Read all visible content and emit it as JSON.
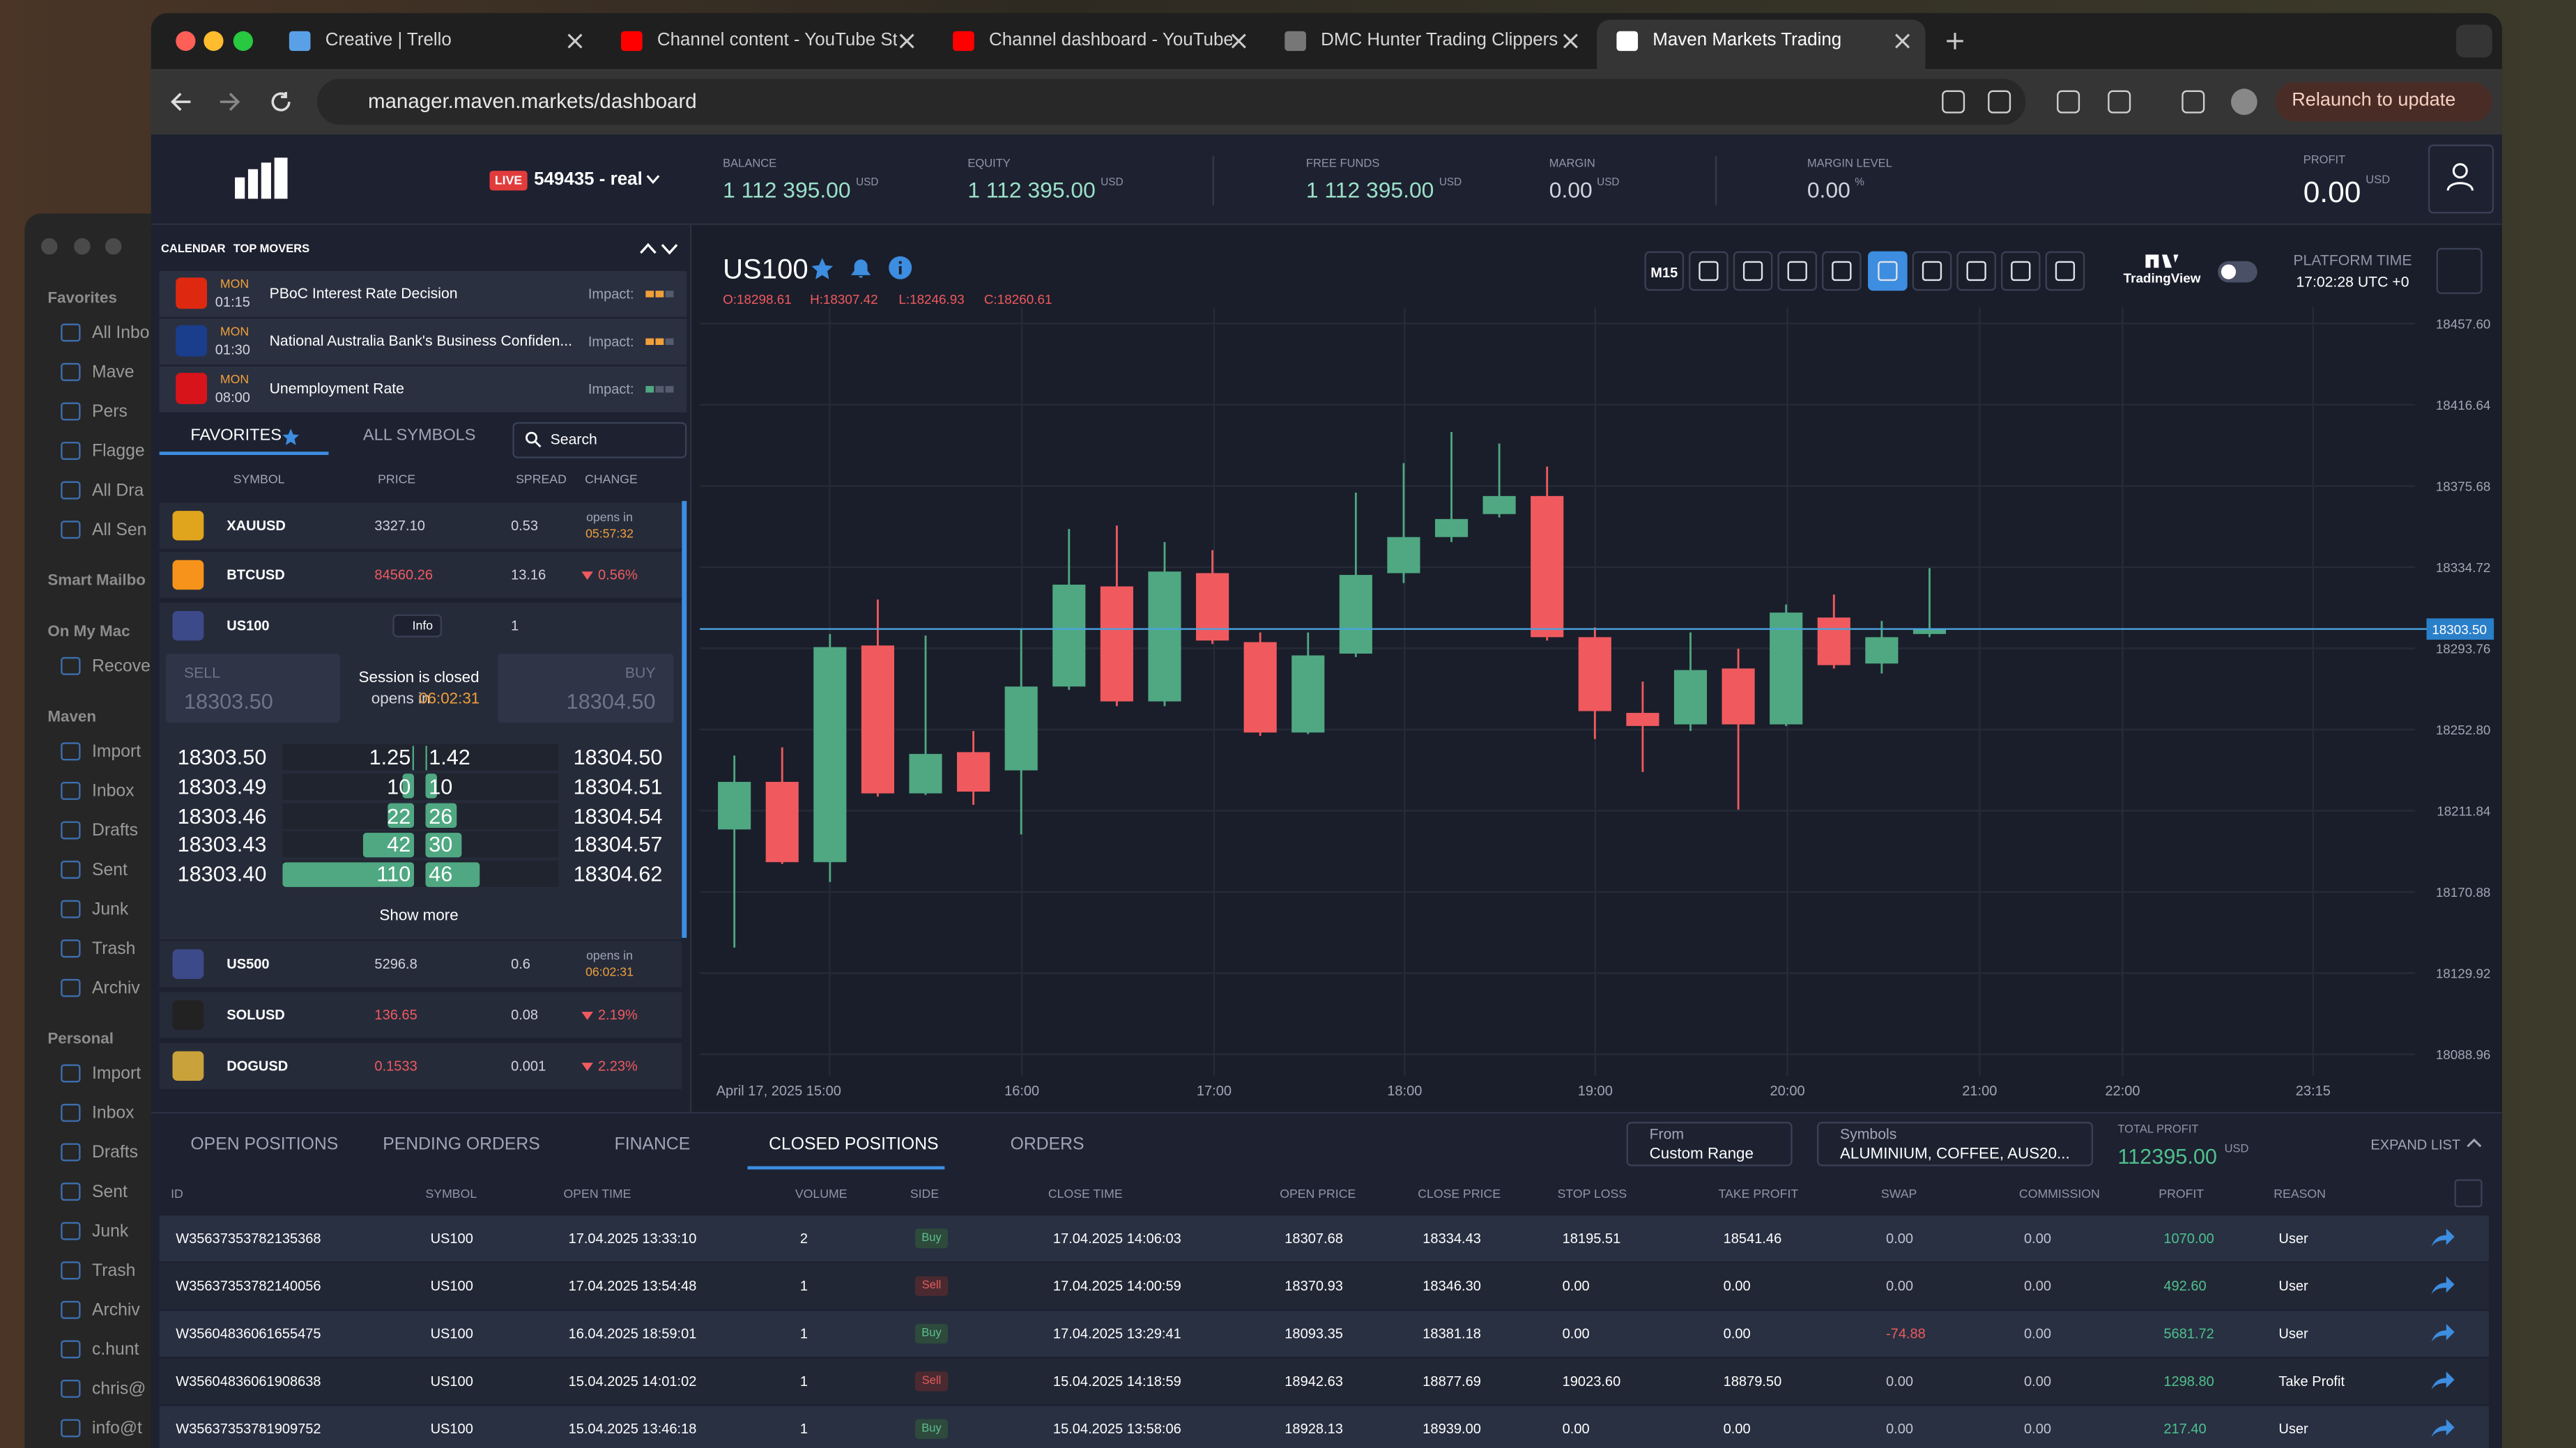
{
  "browser": {
    "tabs": [
      "Creative | Trello",
      "Channel content - YouTube St",
      "Channel dashboard - YouTube",
      "DMC Hunter Trading Clippers",
      "Maven Markets Trading"
    ],
    "url": "manager.maven.markets/dashboard",
    "relaunch": "Relaunch to update"
  },
  "mail_sidebar": [
    {
      "title": "Favorites",
      "items": [
        "All Inbo",
        "Mave",
        "Pers",
        "Flagge",
        "All Dra",
        "All Sen"
      ]
    },
    {
      "title": "Smart Mailbo",
      "items": []
    },
    {
      "title": "On My Mac",
      "items": [
        "Recove"
      ]
    },
    {
      "title": "Maven",
      "items": [
        "Import",
        "Inbox",
        "Drafts",
        "Sent",
        "Junk",
        "Trash",
        "Archiv"
      ]
    },
    {
      "title": "Personal",
      "items": [
        "Import",
        "Inbox",
        "Drafts",
        "Sent",
        "Junk",
        "Trash",
        "Archiv",
        "c.hunt",
        "chris@",
        "info@t"
      ]
    }
  ],
  "header": {
    "live": "LIVE",
    "account": "549435 - real",
    "stats": [
      {
        "label": "BALANCE",
        "value": "1 112 395.00",
        "unit": "USD"
      },
      {
        "label": "EQUITY",
        "value": "1 112 395.00",
        "unit": "USD"
      },
      {
        "label": "FREE FUNDS",
        "value": "1 112 395.00",
        "unit": "USD"
      },
      {
        "label": "MARGIN",
        "value": "0.00",
        "unit": "USD"
      },
      {
        "label": "MARGIN LEVEL",
        "value": "0.00",
        "unit": "%"
      }
    ],
    "profit": {
      "label": "PROFIT",
      "value": "0.00",
      "unit": "USD"
    }
  },
  "calendar": {
    "tabs": [
      "CALENDAR",
      "TOP MOVERS"
    ],
    "events": [
      {
        "day": "MON",
        "time": "01:15",
        "title": "PBoC Interest Rate Decision",
        "impact": "Impact:"
      },
      {
        "day": "MON",
        "time": "01:30",
        "title": "National Australia Bank's Business Confiden...",
        "impact": "Impact:"
      },
      {
        "day": "MON",
        "time": "08:00",
        "title": "Unemployment Rate",
        "impact": "Impact:"
      }
    ]
  },
  "watchlist": {
    "tabs": [
      "FAVORITES",
      "ALL SYMBOLS"
    ],
    "search": "Search",
    "columns": [
      "SYMBOL",
      "PRICE",
      "SPREAD",
      "CHANGE"
    ],
    "rows": [
      {
        "symbol": "XAUUSD",
        "price": "3327.10",
        "spread": "0.53",
        "opens": "opens in",
        "opens_at": "05:57:32"
      },
      {
        "symbol": "BTCUSD",
        "price": "84560.26",
        "spread": "13.16",
        "change": "0.56%"
      },
      {
        "symbol": "US100",
        "info": "Info",
        "spread": "1"
      },
      {
        "symbol": "US500",
        "price": "5296.8",
        "spread": "0.6",
        "opens": "opens in",
        "opens_at": "06:02:31"
      },
      {
        "symbol": "SOLUSD",
        "price": "136.65",
        "spread": "0.08",
        "change": "2.19%"
      },
      {
        "symbol": "DOGUSD",
        "price": "0.1533",
        "spread": "0.001",
        "change": "2.23%"
      }
    ]
  },
  "trade": {
    "sell": "SELL",
    "sell_price": "18303.50",
    "status": "Session is closed",
    "opens": "opens in",
    "opens_at": "06:02:31",
    "buy": "BUY",
    "buy_price": "18304.50",
    "book": [
      {
        "bid": "18303.50",
        "bid_volume": 1.25,
        "ask_volume": 1.42,
        "ask": "18304.50"
      },
      {
        "bid": "18303.49",
        "bid_volume": 10,
        "ask_volume": 10,
        "ask": "18304.51"
      },
      {
        "bid": "18303.46",
        "bid_volume": 22,
        "ask_volume": 26,
        "ask": "18304.54"
      },
      {
        "bid": "18303.43",
        "bid_volume": 42,
        "ask_volume": 30,
        "ask": "18304.57"
      },
      {
        "bid": "18303.40",
        "bid_volume": 110,
        "ask_volume": 46,
        "ask": "18304.62"
      }
    ],
    "show_more": "Show more"
  },
  "chart_data": {
    "type": "candlestick",
    "title": "US100",
    "ohlc_labels": [
      "O:18298.61",
      "H:18307.42",
      "L:18246.93",
      "C:18260.61"
    ],
    "up_color": "#4fa882",
    "down_color": "#f05a5f",
    "open": [
      18202.4,
      18226.4,
      18185.9,
      18295.2,
      18220.6,
      18241.4,
      18232.2,
      18274.5,
      18325.0,
      18267.0,
      18331.7,
      18296.9,
      18251.3,
      18291.1,
      18331.7,
      18349.9,
      18361.5,
      18370.6,
      18299.4,
      18261.2,
      18255.4,
      18283.6,
      18255.4,
      18309.3,
      18286.1,
      18301.0
    ],
    "high": [
      18239.7,
      18243.8,
      18301.0,
      18318.4,
      18300.2,
      18252.1,
      18303.5,
      18354.0,
      18355.7,
      18347.4,
      18343.3,
      18301.8,
      18301.8,
      18372.3,
      18387.2,
      18402.9,
      18397.1,
      18385.5,
      18304.3,
      18277.0,
      18301.8,
      18293.6,
      18315.9,
      18320.9,
      18307.6,
      18334.2
    ],
    "low": [
      18142.8,
      18185.0,
      18175.9,
      18219.0,
      18219.8,
      18214.8,
      18199.9,
      18272.8,
      18264.6,
      18264.6,
      18296.0,
      18249.6,
      18250.5,
      18289.4,
      18326.7,
      18347.4,
      18359.8,
      18297.7,
      18248.0,
      18231.4,
      18252.1,
      18212.4,
      18254.6,
      18283.6,
      18281.1,
      18299.4
    ],
    "close": [
      18226.4,
      18185.9,
      18294.4,
      18220.6,
      18240.5,
      18221.5,
      18274.5,
      18325.9,
      18267.0,
      18332.5,
      18297.7,
      18251.3,
      18290.2,
      18330.8,
      18349.9,
      18359.0,
      18370.6,
      18299.4,
      18262.1,
      18254.6,
      18282.8,
      18255.4,
      18311.8,
      18285.3,
      18299.4,
      18303.5
    ],
    "ylim": [
      18078.1,
      18463.4
    ],
    "yticks": [
      {
        "value": 18457.6,
        "label": "18457.60"
      },
      {
        "value": 18416.64,
        "label": "18416.64"
      },
      {
        "value": 18375.68,
        "label": "18375.68"
      },
      {
        "value": 18334.72,
        "label": "18334.72"
      },
      {
        "value": 18293.76,
        "label": "18293.76"
      },
      {
        "value": 18252.8,
        "label": "18252.80"
      },
      {
        "value": 18211.84,
        "label": "18211.84"
      },
      {
        "value": 18170.88,
        "label": "18170.88"
      },
      {
        "value": 18129.92,
        "label": "18129.92"
      },
      {
        "value": 18088.96,
        "label": "18088.96"
      }
    ],
    "xticks": [
      "April 17, 2025 15:00",
      "16:00",
      "17:00",
      "18:00",
      "19:00",
      "20:00",
      "21:00",
      "22:00",
      "23:15"
    ],
    "last_price": {
      "value": 18303.5,
      "label": "18303.50"
    },
    "grid": true
  },
  "chart_toolbar": {
    "timeframe": "M15",
    "brand": "TradingView",
    "time_label": "PLATFORM TIME",
    "time": "17:02:28 UTC +0"
  },
  "bottom": {
    "tabs": [
      "OPEN POSITIONS",
      "PENDING ORDERS",
      "FINANCE",
      "CLOSED POSITIONS",
      "ORDERS"
    ]
  },
  "filters": {
    "from_label": "From",
    "from": "Custom Range",
    "symbols_label": "Symbols",
    "symbols": "ALUMINIUM, COFFEE, AUS20...",
    "total_label": "TOTAL PROFIT",
    "total": "112395.00",
    "total_unit": "USD",
    "expand": "EXPAND LIST"
  },
  "table": {
    "columns": [
      "ID",
      "SYMBOL",
      "OPEN TIME",
      "VOLUME",
      "SIDE",
      "CLOSE TIME",
      "OPEN PRICE",
      "CLOSE PRICE",
      "STOP LOSS",
      "TAKE PROFIT",
      "SWAP",
      "COMMISSION",
      "PROFIT",
      "REASON"
    ],
    "rows": [
      [
        "W35637353782135368",
        "US100",
        "17.04.2025 13:33:10",
        "2",
        "Buy",
        "17.04.2025 14:06:03",
        "18307.68",
        "18334.43",
        "18195.51",
        "18541.46",
        "0.00",
        "0.00",
        "1070.00",
        "User"
      ],
      [
        "W35637353782140056",
        "US100",
        "17.04.2025 13:54:48",
        "1",
        "Sell",
        "17.04.2025 14:00:59",
        "18370.93",
        "18346.30",
        "0.00",
        "0.00",
        "0.00",
        "0.00",
        "492.60",
        "User"
      ],
      [
        "W35604836061655475",
        "US100",
        "16.04.2025 18:59:01",
        "1",
        "Buy",
        "17.04.2025 13:29:41",
        "18093.35",
        "18381.18",
        "0.00",
        "0.00",
        "-74.88",
        "0.00",
        "5681.72",
        "User"
      ],
      [
        "W35604836061908638",
        "US100",
        "15.04.2025 14:01:02",
        "1",
        "Sell",
        "15.04.2025 14:18:59",
        "18942.63",
        "18877.69",
        "19023.60",
        "18879.50",
        "0.00",
        "0.00",
        "1298.80",
        "Take Profit"
      ],
      [
        "W35637353781909752",
        "US100",
        "15.04.2025 13:46:18",
        "1",
        "Buy",
        "15.04.2025 13:58:06",
        "18928.13",
        "18939.00",
        "0.00",
        "0.00",
        "0.00",
        "0.00",
        "217.40",
        "User"
      ]
    ]
  }
}
